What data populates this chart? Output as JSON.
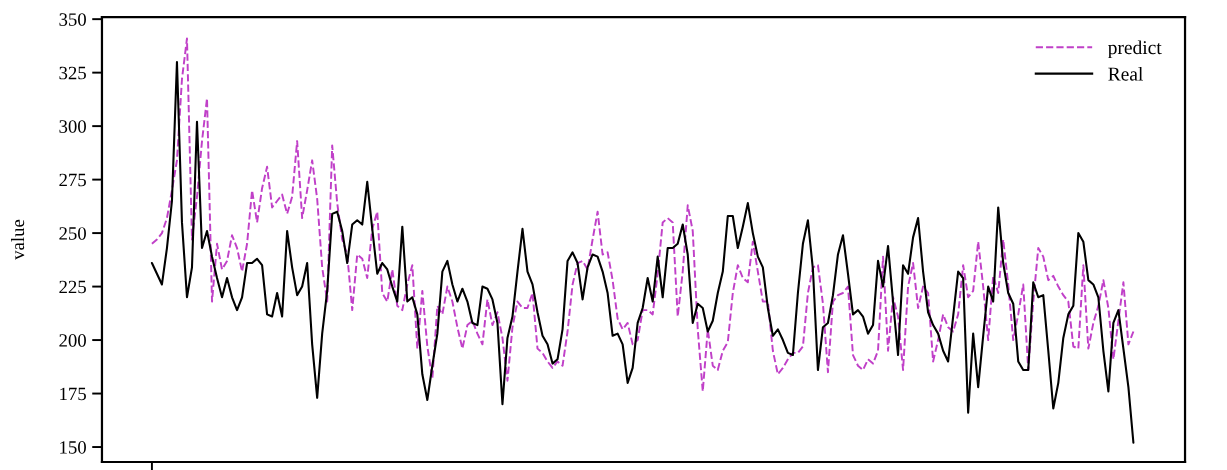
{
  "chart_data": {
    "type": "line",
    "ylabel": "value",
    "categories": [
      null,
      null,
      null,
      null,
      null,
      null,
      null,
      null,
      null,
      null,
      null,
      null,
      null,
      null,
      null,
      null,
      null,
      null,
      null,
      null,
      null,
      null,
      null,
      null,
      null,
      null,
      null,
      null,
      null,
      null,
      null,
      null,
      null,
      null,
      null,
      null,
      null,
      null,
      null,
      null,
      null,
      null,
      null,
      null,
      null,
      null,
      null,
      null,
      null,
      null,
      null,
      null,
      null,
      null,
      null,
      null,
      null,
      null,
      null,
      null,
      null,
      null,
      null,
      null,
      null,
      null,
      null,
      null,
      null,
      null,
      null,
      null,
      null,
      null,
      null,
      null,
      null,
      null,
      null,
      null,
      null,
      null,
      null,
      null,
      null,
      null,
      null,
      null,
      null,
      null,
      null,
      null,
      null,
      null,
      null,
      null,
      null,
      null,
      null,
      null,
      null,
      null,
      null,
      null,
      null,
      null,
      null,
      null,
      null,
      null,
      null,
      null,
      null,
      null,
      null,
      null,
      null,
      null,
      null,
      null,
      null,
      null,
      null,
      null,
      null,
      null,
      null,
      null,
      null,
      null,
      null,
      null,
      null,
      null,
      null,
      null,
      null,
      null,
      null,
      null,
      null,
      null,
      null,
      null,
      null,
      null,
      null,
      null,
      null,
      null,
      null,
      null,
      null,
      null,
      null,
      null,
      null,
      null,
      null,
      null,
      null,
      null,
      null,
      null,
      null,
      null,
      null,
      null,
      null,
      null,
      null,
      null,
      null,
      null,
      null,
      null,
      null,
      null,
      null,
      null,
      null,
      null,
      null,
      null,
      null,
      null,
      null,
      null,
      null,
      null,
      null,
      null,
      null,
      null,
      null,
      null,
      null
    ],
    "series": [
      {
        "name": "predict",
        "color": "#c040c8",
        "line_style": "dashed",
        "values": [
          245,
          247,
          250,
          257,
          270,
          284,
          322,
          341,
          247,
          267,
          293,
          313,
          218,
          245,
          233,
          237,
          249,
          243,
          232,
          245,
          270,
          255,
          271,
          281,
          262,
          265,
          268,
          259,
          267,
          293,
          257,
          270,
          284,
          266,
          234,
          218,
          291,
          264,
          247,
          240,
          214,
          240,
          238,
          229,
          252,
          260,
          222,
          218,
          233,
          216,
          214,
          226,
          235,
          196,
          223,
          197,
          182,
          216,
          212,
          225,
          218,
          206,
          196,
          207,
          209,
          203,
          198,
          219,
          207,
          213,
          201,
          181,
          206,
          218,
          215,
          215,
          222,
          196,
          194,
          190,
          187,
          190,
          188,
          204,
          226,
          236,
          237,
          233,
          247,
          260,
          240,
          241,
          228,
          210,
          205,
          208,
          198,
          200,
          214,
          214,
          212,
          231,
          255,
          257,
          255,
          211,
          232,
          263,
          251,
          205,
          176,
          205,
          188,
          186,
          195,
          199,
          222,
          235,
          229,
          227,
          246,
          232,
          218,
          218,
          195,
          184,
          187,
          191,
          194,
          194,
          197,
          222,
          234,
          235,
          217,
          185,
          218,
          221,
          222,
          225,
          193,
          188,
          186,
          191,
          189,
          195,
          239,
          195,
          220,
          211,
          186,
          225,
          236,
          215,
          225,
          222,
          190,
          200,
          212,
          206,
          204,
          212,
          235,
          220,
          223,
          246,
          225,
          200,
          230,
          222,
          247,
          226,
          200,
          212,
          226,
          186,
          218,
          243,
          239,
          228,
          230,
          225,
          221,
          218,
          197,
          196,
          235,
          196,
          208,
          216,
          228,
          215,
          191,
          209,
          227,
          198,
          204
        ]
      },
      {
        "name": "Real",
        "color": "#000000",
        "line_style": "solid",
        "values": [
          236,
          231,
          226,
          243,
          265,
          330,
          255,
          220,
          234,
          302,
          243,
          251,
          239,
          229,
          220,
          229,
          220,
          214,
          220,
          236,
          236,
          238,
          235,
          212,
          211,
          222,
          211,
          251,
          234,
          221,
          225,
          236,
          198,
          173,
          203,
          223,
          259,
          260,
          251,
          236,
          254,
          256,
          254,
          274,
          252,
          231,
          236,
          233,
          225,
          218,
          253,
          218,
          220,
          212,
          184,
          172,
          188,
          203,
          232,
          237,
          226,
          218,
          224,
          218,
          208,
          207,
          225,
          224,
          219,
          208,
          170,
          201,
          211,
          232,
          252,
          232,
          226,
          213,
          202,
          198,
          189,
          191,
          205,
          237,
          241,
          236,
          219,
          234,
          240,
          239,
          232,
          222,
          202,
          203,
          198,
          180,
          187,
          208,
          215,
          229,
          218,
          239,
          220,
          243,
          243,
          245,
          254,
          240,
          208,
          217,
          215,
          204,
          209,
          222,
          232,
          258,
          258,
          243,
          253,
          264,
          250,
          239,
          234,
          215,
          202,
          205,
          200,
          194,
          193,
          222,
          245,
          256,
          233,
          186,
          206,
          208,
          221,
          240,
          249,
          231,
          212,
          214,
          211,
          203,
          207,
          237,
          225,
          244,
          218,
          193,
          235,
          231,
          248,
          257,
          232,
          213,
          207,
          203,
          195,
          190,
          211,
          232,
          229,
          166,
          203,
          178,
          202,
          225,
          218,
          262,
          236,
          222,
          217,
          190,
          186,
          186,
          227,
          220,
          221,
          195,
          168,
          180,
          201,
          212,
          216,
          250,
          246,
          228,
          226,
          220,
          195,
          176,
          208,
          214,
          196,
          178,
          152
        ]
      }
    ],
    "ylim": [
      143,
      351
    ],
    "yticks": [
      150,
      175,
      200,
      225,
      250,
      275,
      300,
      325,
      350
    ],
    "tick_labels": "y",
    "grid": false,
    "legend": "top right"
  }
}
